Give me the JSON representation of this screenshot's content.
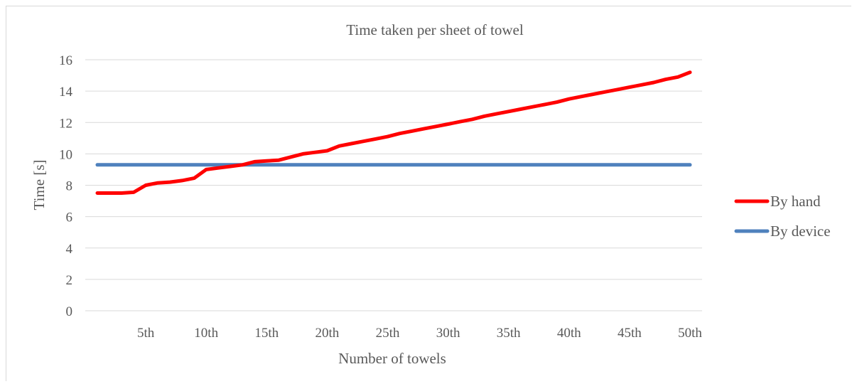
{
  "chart_data": {
    "type": "line",
    "title": "Time taken per sheet of towel",
    "xlabel": "Number of towels",
    "ylabel": "Time [s]",
    "ylim": [
      0,
      16
    ],
    "yticks": [
      "0",
      "2",
      "4",
      "6",
      "8",
      "10",
      "12",
      "14",
      "16"
    ],
    "xtick_labels": [
      {
        "x": 5,
        "label": "5th"
      },
      {
        "x": 10,
        "label": "10th"
      },
      {
        "x": 15,
        "label": "15th"
      },
      {
        "x": 20,
        "label": "20th"
      },
      {
        "x": 25,
        "label": "25th"
      },
      {
        "x": 30,
        "label": "30th"
      },
      {
        "x": 35,
        "label": "35th"
      },
      {
        "x": 40,
        "label": "40th"
      },
      {
        "x": 45,
        "label": "45th"
      },
      {
        "x": 50,
        "label": "50th"
      }
    ],
    "x": [
      1,
      2,
      3,
      4,
      5,
      6,
      7,
      8,
      9,
      10,
      11,
      12,
      13,
      14,
      15,
      16,
      17,
      18,
      19,
      20,
      21,
      22,
      23,
      24,
      25,
      26,
      27,
      28,
      29,
      30,
      31,
      32,
      33,
      34,
      35,
      36,
      37,
      38,
      39,
      40,
      41,
      42,
      43,
      44,
      45,
      46,
      47,
      48,
      49,
      50
    ],
    "legend_position": "right",
    "grid": "horizontal",
    "series": [
      {
        "name": "By hand",
        "color": "#ff0000",
        "values": [
          7.5,
          7.5,
          7.5,
          7.55,
          8.0,
          8.15,
          8.2,
          8.3,
          8.45,
          9.0,
          9.1,
          9.2,
          9.3,
          9.5,
          9.55,
          9.6,
          9.8,
          10.0,
          10.1,
          10.2,
          10.5,
          10.65,
          10.8,
          10.95,
          11.1,
          11.3,
          11.45,
          11.6,
          11.75,
          11.9,
          12.05,
          12.2,
          12.4,
          12.55,
          12.7,
          12.85,
          13.0,
          13.15,
          13.3,
          13.5,
          13.65,
          13.8,
          13.95,
          14.1,
          14.25,
          14.4,
          14.55,
          14.75,
          14.9,
          15.2
        ]
      },
      {
        "name": "By device",
        "color": "#4f81bd",
        "values": [
          9.3,
          9.3,
          9.3,
          9.3,
          9.3,
          9.3,
          9.3,
          9.3,
          9.3,
          9.3,
          9.3,
          9.3,
          9.3,
          9.3,
          9.3,
          9.3,
          9.3,
          9.3,
          9.3,
          9.3,
          9.3,
          9.3,
          9.3,
          9.3,
          9.3,
          9.3,
          9.3,
          9.3,
          9.3,
          9.3,
          9.3,
          9.3,
          9.3,
          9.3,
          9.3,
          9.3,
          9.3,
          9.3,
          9.3,
          9.3,
          9.3,
          9.3,
          9.3,
          9.3,
          9.3,
          9.3,
          9.3,
          9.3,
          9.3,
          9.3
        ]
      }
    ]
  }
}
